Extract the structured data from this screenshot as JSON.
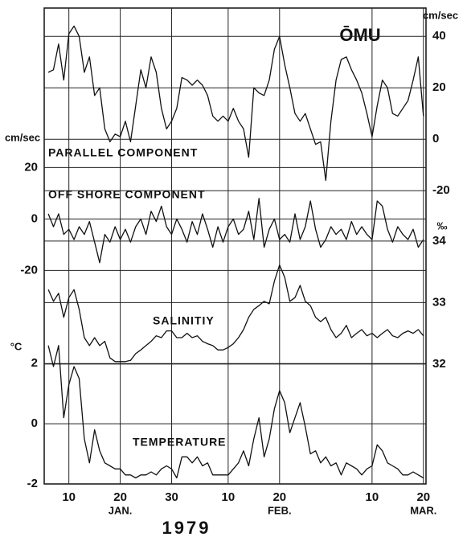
{
  "chart_data": {
    "type": "line",
    "title": "ŌMU",
    "x": [
      6,
      7,
      8,
      9,
      10,
      11,
      12,
      13,
      14,
      15,
      16,
      17,
      18,
      19,
      20,
      21,
      22,
      23,
      24,
      25,
      26,
      27,
      28,
      29,
      30,
      31,
      32,
      33,
      34,
      35,
      36,
      37,
      38,
      39,
      40,
      41,
      42,
      43,
      44,
      45,
      46,
      47,
      48,
      49,
      50,
      51,
      52,
      53,
      54,
      55,
      56,
      57,
      58,
      59,
      60,
      61,
      62,
      63,
      64,
      65,
      66,
      67,
      68,
      69,
      70,
      71,
      72,
      73,
      74,
      75,
      76,
      77,
      78,
      79
    ],
    "xlim": [
      5.2,
      79.5
    ],
    "xticks": [
      10,
      20,
      30,
      {
        "value": 41,
        "label": "10"
      },
      {
        "value": 51,
        "label": "20"
      },
      {
        "value": 69,
        "label": "10"
      },
      {
        "value": 79,
        "label": "20"
      }
    ],
    "months": [
      "JAN.",
      "FEB.",
      "MAR."
    ],
    "year": "1979",
    "grid": true,
    "color": "#111111",
    "series": [
      {
        "name": "PARALLEL COMPONENT",
        "axis": "right",
        "unit": "cm/sec",
        "ylim": [
          -134,
          51
        ],
        "yticks": [
          40,
          20,
          0,
          -20
        ],
        "values": [
          26,
          27,
          37,
          23,
          41,
          44,
          40,
          26,
          32,
          17,
          20,
          4,
          -1,
          2,
          1,
          7,
          -1,
          13,
          27,
          20,
          32,
          26,
          12,
          4,
          7,
          12,
          24,
          23,
          21,
          23,
          21,
          17,
          9,
          7,
          9,
          7,
          12,
          7,
          4,
          -7,
          20,
          18,
          17,
          23,
          35,
          40,
          29,
          20,
          10,
          7,
          10,
          4,
          -2,
          -1,
          -16,
          7,
          23,
          31,
          32,
          27,
          23,
          18,
          10,
          1,
          13,
          23,
          20,
          10,
          9,
          12,
          15,
          23,
          32,
          9
        ]
      },
      {
        "name": "OFF SHORE COMPONENT",
        "axis": "left",
        "unit": "cm/sec",
        "ylim": [
          -103,
          82
        ],
        "yticks": [
          20,
          0,
          -20
        ],
        "values": [
          2,
          -3,
          2,
          -6,
          -4,
          -8,
          -3,
          -6,
          -1,
          -9,
          -17,
          -6,
          -9,
          -3,
          -8,
          -4,
          -9,
          -3,
          0,
          -6,
          3,
          -1,
          5,
          -3,
          -6,
          0,
          -4,
          -9,
          -1,
          -6,
          2,
          -4,
          -11,
          -3,
          -9,
          -3,
          0,
          -6,
          -4,
          3,
          -8,
          8,
          -11,
          -4,
          0,
          -8,
          -6,
          -9,
          2,
          -8,
          -3,
          7,
          -4,
          -11,
          -8,
          -3,
          -6,
          -4,
          -8,
          -1,
          -6,
          -3,
          -6,
          -8,
          7,
          5,
          -4,
          -9,
          -3,
          -6,
          -8,
          -4,
          -11,
          -8
        ]
      },
      {
        "name": "SALINITIY",
        "axis": "right",
        "unit": "‰",
        "ylim": [
          30.05,
          37.79
        ],
        "yticks": [
          34,
          33,
          32
        ],
        "values": [
          33.21,
          33.02,
          33.15,
          32.76,
          33.08,
          33.21,
          32.89,
          32.43,
          32.3,
          32.43,
          32.3,
          32.37,
          32.1,
          32.04,
          32.04,
          32.04,
          32.06,
          32.17,
          32.23,
          32.3,
          32.37,
          32.46,
          32.43,
          32.54,
          32.54,
          32.43,
          32.43,
          32.5,
          32.43,
          32.46,
          32.37,
          32.33,
          32.3,
          32.23,
          32.23,
          32.27,
          32.33,
          32.43,
          32.56,
          32.76,
          32.89,
          32.95,
          33.02,
          32.98,
          33.35,
          33.61,
          33.41,
          33.02,
          33.08,
          33.28,
          33.02,
          32.95,
          32.76,
          32.69,
          32.76,
          32.56,
          32.43,
          32.5,
          32.63,
          32.43,
          32.5,
          32.56,
          32.46,
          32.5,
          32.43,
          32.5,
          32.56,
          32.46,
          32.43,
          32.5,
          32.54,
          32.5,
          32.56,
          32.46
        ]
      },
      {
        "name": "TEMPERATURE",
        "axis": "left",
        "unit": "°C",
        "ylim": [
          -2,
          13.81
        ],
        "yticks": [
          2,
          0,
          -2
        ],
        "values": [
          2.6,
          1.9,
          2.6,
          0.2,
          1.3,
          1.9,
          1.5,
          -0.5,
          -1.3,
          -0.2,
          -0.9,
          -1.3,
          -1.4,
          -1.5,
          -1.5,
          -1.7,
          -1.7,
          -1.8,
          -1.7,
          -1.7,
          -1.6,
          -1.7,
          -1.5,
          -1.4,
          -1.5,
          -1.8,
          -1.1,
          -1.1,
          -1.3,
          -1.1,
          -1.4,
          -1.3,
          -1.7,
          -1.7,
          -1.7,
          -1.7,
          -1.5,
          -1.3,
          -0.9,
          -1.4,
          -0.5,
          0.2,
          -1.1,
          -0.5,
          0.5,
          1.1,
          0.7,
          -0.3,
          0.2,
          0.7,
          -0.1,
          -1.0,
          -0.9,
          -1.3,
          -1.1,
          -1.4,
          -1.3,
          -1.7,
          -1.3,
          -1.4,
          -1.5,
          -1.7,
          -1.5,
          -1.4,
          -0.7,
          -0.9,
          -1.3,
          -1.4,
          -1.5,
          -1.7,
          -1.7,
          -1.6,
          -1.7,
          -1.8
        ]
      }
    ]
  }
}
